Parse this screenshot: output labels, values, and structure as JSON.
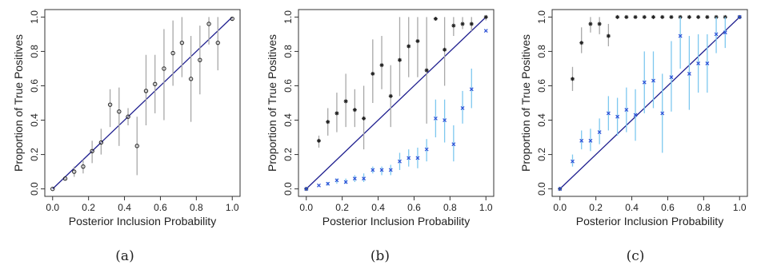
{
  "colors": {
    "diagonal": "#1f1f8f",
    "marker_dark": "#222222",
    "marker_blue": "#2a4fd6",
    "bar_dark": "#a8a8a8",
    "bar_blue": "#7ec8ef",
    "axis": "#333333"
  },
  "chart_data": [
    {
      "type": "scatter",
      "caption": "(a)",
      "xlabel": "Posterior Inclusion Probability",
      "ylabel": "Proportion of True Positives",
      "xlim": [
        0,
        1
      ],
      "ylim": [
        0,
        1
      ],
      "xticks": [
        "0.0",
        "0.2",
        "0.4",
        "0.6",
        "0.8",
        "1.0"
      ],
      "yticks": [
        "0.0",
        "0.2",
        "0.4",
        "0.6",
        "0.8",
        "1.0"
      ],
      "reference_line": "y = x",
      "series": [
        {
          "marker": "circle",
          "color": "dark",
          "x": [
            0.0,
            0.07,
            0.12,
            0.17,
            0.22,
            0.27,
            0.32,
            0.37,
            0.42,
            0.47,
            0.52,
            0.57,
            0.62,
            0.67,
            0.72,
            0.77,
            0.82,
            0.87,
            0.92,
            1.0
          ],
          "y": [
            0.0,
            0.06,
            0.1,
            0.13,
            0.22,
            0.27,
            0.49,
            0.45,
            0.42,
            0.25,
            0.57,
            0.61,
            0.7,
            0.79,
            0.85,
            0.64,
            0.75,
            0.96,
            0.85,
            0.99
          ],
          "lower": [
            0.0,
            0.05,
            0.07,
            0.09,
            0.15,
            0.2,
            0.36,
            0.25,
            0.37,
            0.08,
            0.37,
            0.44,
            0.4,
            0.6,
            0.65,
            0.39,
            0.55,
            0.84,
            0.69,
            0.98
          ],
          "upper": [
            0.0,
            0.07,
            0.13,
            0.17,
            0.28,
            0.35,
            0.58,
            0.59,
            0.47,
            0.42,
            0.78,
            0.78,
            0.93,
            0.98,
            1.0,
            0.89,
            0.95,
            1.0,
            1.0,
            1.0
          ]
        }
      ]
    },
    {
      "type": "scatter",
      "caption": "(b)",
      "xlabel": "Posterior Inclusion Probability",
      "ylabel": "Proportion of True Positives",
      "xlim": [
        0,
        1
      ],
      "ylim": [
        0,
        1
      ],
      "xticks": [
        "0.0",
        "0.2",
        "0.4",
        "0.6",
        "0.8",
        "1.0"
      ],
      "yticks": [
        "0.0",
        "0.2",
        "0.4",
        "0.6",
        "0.8",
        "1.0"
      ],
      "reference_line": "y = x",
      "series": [
        {
          "marker": "asterisk",
          "color": "dark",
          "x": [
            0.0,
            0.07,
            0.12,
            0.17,
            0.22,
            0.27,
            0.32,
            0.37,
            0.42,
            0.47,
            0.52,
            0.57,
            0.62,
            0.67,
            0.72,
            0.77,
            0.82,
            0.87,
            0.92,
            1.0
          ],
          "y": [
            0.0,
            0.28,
            0.39,
            0.44,
            0.51,
            0.46,
            0.41,
            0.67,
            0.72,
            0.54,
            0.75,
            0.83,
            0.86,
            0.69,
            0.99,
            0.81,
            0.95,
            0.96,
            0.96,
            1.0
          ],
          "lower": [
            0.0,
            0.24,
            0.31,
            0.33,
            0.36,
            0.36,
            0.23,
            0.5,
            0.58,
            0.36,
            0.54,
            0.65,
            0.65,
            0.38,
            0.99,
            0.6,
            0.89,
            0.93,
            0.92,
            0.98
          ],
          "upper": [
            0.0,
            0.31,
            0.47,
            0.56,
            0.67,
            0.58,
            0.6,
            0.87,
            0.89,
            0.72,
            1.0,
            1.0,
            1.0,
            1.0,
            0.99,
            1.0,
            1.0,
            1.0,
            1.0,
            1.0
          ]
        },
        {
          "marker": "cross",
          "color": "blue",
          "x": [
            0.0,
            0.07,
            0.12,
            0.17,
            0.22,
            0.27,
            0.32,
            0.37,
            0.42,
            0.47,
            0.52,
            0.57,
            0.62,
            0.67,
            0.72,
            0.77,
            0.82,
            0.87,
            0.92,
            1.0
          ],
          "y": [
            0.0,
            0.02,
            0.03,
            0.05,
            0.04,
            0.06,
            0.06,
            0.11,
            0.11,
            0.11,
            0.16,
            0.18,
            0.18,
            0.23,
            0.41,
            0.4,
            0.26,
            0.47,
            0.58,
            0.92
          ],
          "lower": [
            0.0,
            0.02,
            0.02,
            0.03,
            0.03,
            0.04,
            0.04,
            0.09,
            0.08,
            0.08,
            0.11,
            0.13,
            0.12,
            0.16,
            0.3,
            0.27,
            0.16,
            0.38,
            0.47,
            0.92
          ],
          "upper": [
            0.0,
            0.02,
            0.04,
            0.06,
            0.06,
            0.08,
            0.09,
            0.13,
            0.13,
            0.14,
            0.21,
            0.23,
            0.24,
            0.29,
            0.52,
            0.52,
            0.37,
            0.57,
            0.7,
            0.92
          ]
        }
      ]
    },
    {
      "type": "scatter",
      "caption": "(c)",
      "xlabel": "Posterior Inclusion Probability",
      "ylabel": "Proportion of True Positives",
      "xlim": [
        0,
        1
      ],
      "ylim": [
        0,
        1
      ],
      "xticks": [
        "0.0",
        "0.2",
        "0.4",
        "0.6",
        "0.8",
        "1.0"
      ],
      "yticks": [
        "0.0",
        "0.2",
        "0.4",
        "0.6",
        "0.8",
        "1.0"
      ],
      "reference_line": "y = x",
      "series": [
        {
          "marker": "asterisk",
          "color": "dark",
          "x": [
            0.0,
            0.07,
            0.12,
            0.17,
            0.22,
            0.27,
            0.32,
            0.37,
            0.42,
            0.47,
            0.52,
            0.57,
            0.62,
            0.67,
            0.72,
            0.77,
            0.82,
            0.87,
            0.92,
            1.0
          ],
          "y": [
            0.0,
            0.64,
            0.85,
            0.96,
            0.96,
            0.89,
            1.0,
            1.0,
            1.0,
            1.0,
            1.0,
            1.0,
            1.0,
            1.0,
            1.0,
            1.0,
            1.0,
            1.0,
            1.0,
            1.0
          ],
          "lower": [
            0.0,
            0.57,
            0.79,
            0.91,
            0.9,
            0.83,
            1.0,
            1.0,
            1.0,
            1.0,
            1.0,
            1.0,
            1.0,
            1.0,
            1.0,
            1.0,
            1.0,
            1.0,
            1.0,
            1.0
          ],
          "upper": [
            0.0,
            0.71,
            0.94,
            1.0,
            1.0,
            0.96,
            1.0,
            1.0,
            1.0,
            1.0,
            1.0,
            1.0,
            1.0,
            1.0,
            1.0,
            1.0,
            1.0,
            1.0,
            1.0,
            1.0
          ]
        },
        {
          "marker": "cross",
          "color": "blue",
          "x": [
            0.0,
            0.07,
            0.12,
            0.17,
            0.22,
            0.27,
            0.32,
            0.37,
            0.42,
            0.47,
            0.52,
            0.57,
            0.62,
            0.67,
            0.72,
            0.77,
            0.82,
            0.87,
            0.92,
            1.0
          ],
          "y": [
            0.0,
            0.16,
            0.28,
            0.28,
            0.33,
            0.44,
            0.42,
            0.46,
            0.43,
            0.62,
            0.63,
            0.44,
            0.65,
            0.89,
            0.67,
            0.73,
            0.73,
            0.9,
            0.91,
            1.0
          ],
          "lower": [
            0.0,
            0.13,
            0.23,
            0.22,
            0.26,
            0.34,
            0.31,
            0.33,
            0.28,
            0.44,
            0.47,
            0.21,
            0.45,
            0.7,
            0.46,
            0.56,
            0.56,
            0.79,
            0.82,
            1.0
          ],
          "upper": [
            0.0,
            0.2,
            0.34,
            0.35,
            0.41,
            0.54,
            0.53,
            0.59,
            0.58,
            0.8,
            0.8,
            0.67,
            0.86,
            1.0,
            0.89,
            0.9,
            0.9,
            1.0,
            1.0,
            1.0
          ]
        }
      ]
    }
  ]
}
